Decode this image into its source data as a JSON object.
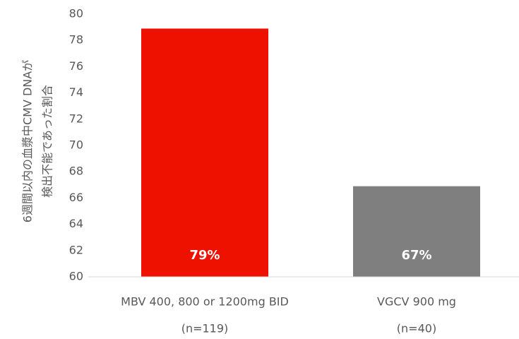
{
  "chart_data": {
    "type": "bar",
    "y_label": [
      "6週間以内の血漿中CMV DNAが",
      "検出不能であった割合"
    ],
    "categories": [
      [
        "MBV 400, 800 or 1200mg BID",
        "(n=119)"
      ],
      [
        "VGCV 900 mg",
        "(n=40)"
      ]
    ],
    "values": [
      78.9,
      66.9
    ],
    "value_labels": [
      "79%",
      "67%"
    ],
    "colors": [
      "#ee1100",
      "#7f7f7f"
    ],
    "ylim": [
      60,
      80
    ],
    "yticks": [
      60,
      62,
      64,
      66,
      68,
      70,
      72,
      74,
      76,
      78,
      80
    ],
    "grid": false
  }
}
